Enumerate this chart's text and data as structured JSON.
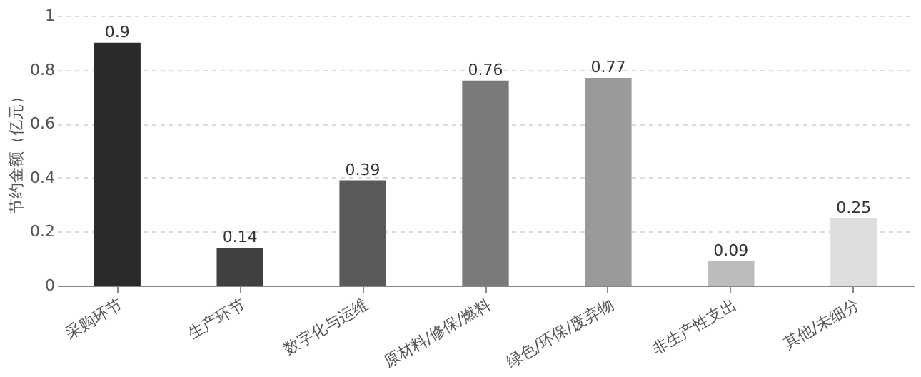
{
  "chart_data": {
    "type": "bar",
    "ylabel": "节约金额（亿元）",
    "categories": [
      "采购环节",
      "生产环节",
      "数字化与运维",
      "原材料/修保/燃料",
      "绿色/环保/废弃物",
      "非生产性支出",
      "其他/未细分"
    ],
    "values": [
      0.9,
      0.14,
      0.39,
      0.76,
      0.77,
      0.09,
      0.25
    ],
    "colors": [
      "#2b2b2b",
      "#404040",
      "#5a5a5a",
      "#7a7a7a",
      "#9a9a9a",
      "#bcbcbc",
      "#dedede"
    ],
    "ylim": [
      0,
      1
    ],
    "yticks": [
      0,
      0.2,
      0.4,
      0.6,
      0.8,
      1
    ],
    "grid": "y",
    "data_labels": true
  }
}
